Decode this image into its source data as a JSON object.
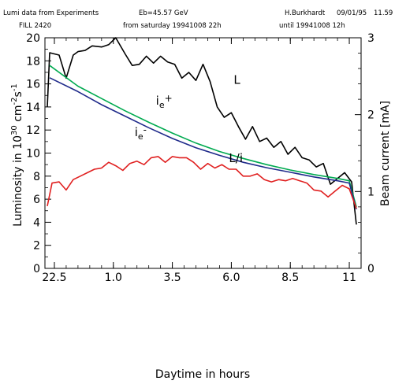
{
  "header": {
    "line1_left": "Lumi data from Experiments",
    "line1_energy": "Eb=45.57 GeV",
    "line1_author": "H.Burkhardt",
    "line1_date": "09/01/95",
    "line1_time": "11.59",
    "line2_fill": "FILL 2420",
    "line2_from": "from saturday 19941008 22h",
    "line2_until": "until 19941008 12h"
  },
  "chart_data": {
    "type": "line",
    "xlabel": "Daytime in hours",
    "ylabel_left": "Luminosity in 10",
    "ylabel_left_sup1": "30",
    "ylabel_left_mid": " cm",
    "ylabel_left_sup2": "-2",
    "ylabel_left_tail": "s",
    "ylabel_left_sup3": "-1",
    "ylabel_right": "Beam current [mA]",
    "x_ticklabels": [
      "22.5",
      "1.0",
      "3.5",
      "6.0",
      "8.5",
      "11"
    ],
    "x_ticks": [
      0,
      2.5,
      5,
      7.5,
      10,
      12.5
    ],
    "xlim": [
      -0.4,
      13.0
    ],
    "y_left_ticks": [
      0,
      2,
      4,
      6,
      8,
      10,
      12,
      14,
      16,
      18,
      20
    ],
    "ylim_left": [
      0,
      20
    ],
    "y_right_ticks": [
      0,
      1,
      2,
      3
    ],
    "ylim_right": [
      0,
      3
    ],
    "series": [
      {
        "name": "L",
        "color": "#000000",
        "axis": "left",
        "x": [
          -0.3,
          -0.2,
          0.2,
          0.5,
          0.8,
          1.0,
          1.3,
          1.6,
          2.0,
          2.3,
          2.6,
          3.0,
          3.3,
          3.6,
          3.9,
          4.2,
          4.5,
          4.8,
          5.1,
          5.4,
          5.7,
          6.0,
          6.3,
          6.6,
          6.9,
          7.2,
          7.5,
          7.8,
          8.1,
          8.4,
          8.7,
          9.0,
          9.3,
          9.6,
          9.9,
          10.2,
          10.5,
          10.8,
          11.1,
          11.4,
          11.7,
          12.0,
          12.3,
          12.6,
          12.8
        ],
        "values": [
          14.0,
          18.7,
          18.5,
          16.5,
          18.5,
          18.8,
          18.9,
          19.3,
          19.2,
          19.4,
          20.0,
          18.6,
          17.6,
          17.7,
          18.4,
          17.8,
          18.4,
          17.9,
          17.7,
          16.5,
          17.0,
          16.3,
          17.7,
          16.2,
          14.0,
          13.1,
          13.5,
          12.3,
          11.2,
          12.3,
          11.0,
          11.3,
          10.5,
          11.0,
          9.9,
          10.5,
          9.6,
          9.4,
          8.8,
          9.1,
          7.3,
          7.8,
          8.3,
          7.5,
          3.8
        ]
      },
      {
        "name": "i",
        "sub": "e",
        "sup": "+",
        "color": "#00aa50",
        "axis": "right",
        "x": [
          -0.2,
          1.0,
          2.0,
          3.0,
          4.0,
          5.0,
          6.0,
          7.0,
          8.0,
          9.0,
          10.0,
          11.0,
          12.0,
          12.5,
          12.8
        ],
        "values": [
          2.64,
          2.37,
          2.21,
          2.05,
          1.9,
          1.76,
          1.63,
          1.52,
          1.43,
          1.35,
          1.28,
          1.22,
          1.17,
          1.14,
          0.8
        ]
      },
      {
        "name": "i",
        "sub": "e",
        "sup": "-",
        "color": "#1f2a8a",
        "axis": "right",
        "x": [
          -0.2,
          1.0,
          2.0,
          3.0,
          4.0,
          5.0,
          6.0,
          7.0,
          8.0,
          9.0,
          10.0,
          11.0,
          12.0,
          12.5,
          12.8
        ],
        "values": [
          2.48,
          2.3,
          2.13,
          1.98,
          1.83,
          1.69,
          1.57,
          1.47,
          1.38,
          1.31,
          1.25,
          1.19,
          1.14,
          1.11,
          0.77
        ]
      },
      {
        "name": "L/i",
        "color": "#e02020",
        "axis": "left",
        "x": [
          -0.3,
          -0.1,
          0.2,
          0.5,
          0.8,
          1.1,
          1.4,
          1.7,
          2.0,
          2.3,
          2.6,
          2.9,
          3.2,
          3.5,
          3.8,
          4.1,
          4.4,
          4.7,
          5.0,
          5.3,
          5.6,
          5.9,
          6.2,
          6.5,
          6.8,
          7.1,
          7.4,
          7.7,
          8.0,
          8.3,
          8.6,
          8.9,
          9.2,
          9.5,
          9.8,
          10.1,
          10.4,
          10.7,
          11.0,
          11.3,
          11.6,
          11.9,
          12.2,
          12.5,
          12.8
        ],
        "values": [
          5.4,
          7.4,
          7.5,
          6.8,
          7.7,
          8.0,
          8.3,
          8.6,
          8.7,
          9.2,
          8.9,
          8.5,
          9.1,
          9.3,
          9.0,
          9.6,
          9.7,
          9.2,
          9.7,
          9.6,
          9.6,
          9.2,
          8.6,
          9.1,
          8.7,
          9.0,
          8.6,
          8.6,
          8.0,
          8.0,
          8.2,
          7.7,
          7.5,
          7.7,
          7.6,
          7.8,
          7.6,
          7.4,
          6.8,
          6.7,
          6.2,
          6.7,
          7.2,
          6.9,
          5.2
        ]
      }
    ],
    "annotations": [
      {
        "text": "L",
        "x": 7.6,
        "y": 16.0,
        "axis": "left"
      },
      {
        "text": "i",
        "sub": "e",
        "sup": "+",
        "x": 4.3,
        "y": 2.13,
        "axis": "right"
      },
      {
        "text": "i",
        "sub": "e",
        "sup": "-",
        "x": 3.4,
        "y": 1.72,
        "axis": "right"
      },
      {
        "text": "L/i",
        "x": 7.4,
        "y": 9.2,
        "axis": "left"
      }
    ]
  }
}
